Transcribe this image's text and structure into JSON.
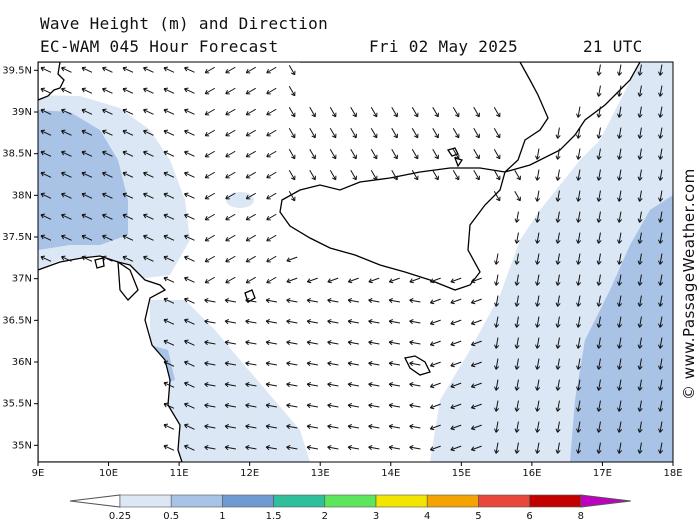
{
  "title": {
    "line1": "Wave Height (m) and Direction",
    "line2_model": "EC-WAM 045 Hour Forecast",
    "line2_date": "Fri 02 May 2025",
    "line2_time": "21 UTC"
  },
  "credit": "© www.PassageWeather.com",
  "axes": {
    "x_labels": [
      "9E",
      "10E",
      "11E",
      "12E",
      "13E",
      "14E",
      "15E",
      "16E",
      "17E",
      "18E"
    ],
    "y_labels": [
      "39.5N",
      "39N",
      "38.5N",
      "38N",
      "37.5N",
      "37N",
      "36.5N",
      "36N",
      "35.5N",
      "35N"
    ],
    "lon_range": [
      9,
      18
    ],
    "lat_range": [
      34.8,
      39.6
    ]
  },
  "legend": {
    "labels": [
      "0.25",
      "0.5",
      "1",
      "1.5",
      "2",
      "3",
      "4",
      "5",
      "6",
      "8"
    ],
    "colors": [
      "#ffffff",
      "#dce7f5",
      "#a9c3e6",
      "#6f9bd2",
      "#2fbf9a",
      "#5ce65c",
      "#f2e600",
      "#f5a300",
      "#e8473b",
      "#c30000",
      "#c000c0"
    ]
  },
  "map": {
    "sea_color": "#ffffff",
    "wave_colors": {
      "light": "#dce7f5",
      "medium": "#a9c3e6"
    },
    "arrow_color": "#111111",
    "coast_color": "#000000"
  }
}
